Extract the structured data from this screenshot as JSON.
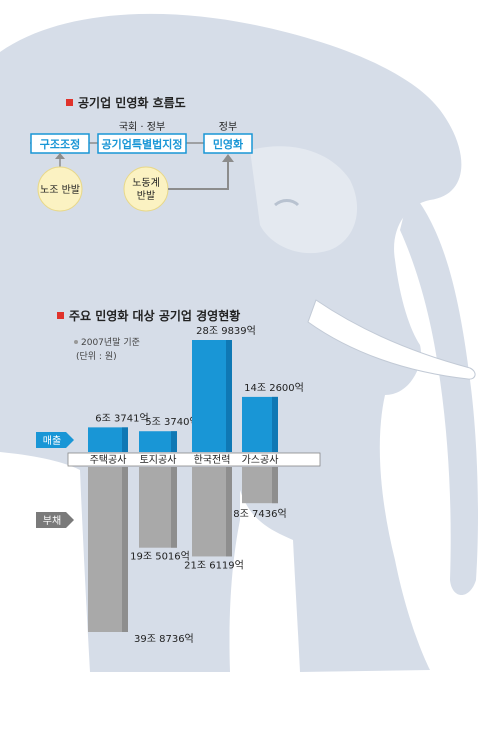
{
  "flow": {
    "title": "공기업 민영화 흐름도",
    "steps": [
      {
        "label": "구조조정",
        "above": ""
      },
      {
        "label": "공기업특별법지정",
        "above": "국회 · 정부"
      },
      {
        "label": "민영화",
        "above": "정부"
      }
    ],
    "resistances": [
      {
        "text": "노조 반발"
      },
      {
        "line1": "노동계",
        "line2": "반발"
      }
    ]
  },
  "chart": {
    "title": "주요 민영화 대상 공기업 경영현황",
    "note": "2007년말 기준",
    "unit": "(단위 : 원)",
    "revenue_tag": "매출",
    "debt_tag": "부채"
  },
  "colors": {
    "accent_red": "#e0322b",
    "revenue_blue": "#1996d6",
    "debt_gray": "#a9a9a9",
    "elephant": "#d6dde8",
    "tusk": "#ffffff",
    "arrow_gray": "#8c8c8c"
  },
  "chart_data": {
    "type": "bar",
    "categories": [
      "주택공사",
      "토지공사",
      "한국전력",
      "가스공사"
    ],
    "series": [
      {
        "name": "매출",
        "values": [
          63741,
          53740,
          289839,
          142600
        ],
        "labels": [
          "6조 3741억",
          "5조 3740억",
          "28조 9839억",
          "14조 2600억"
        ]
      },
      {
        "name": "부채",
        "values": [
          398736,
          195016,
          216119,
          87436
        ],
        "labels": [
          "39조 8736억",
          "19조 5016억",
          "21조 6119억",
          "8조 7436억"
        ]
      }
    ],
    "title": "주요 민영화 대상 공기업 경영현황"
  }
}
